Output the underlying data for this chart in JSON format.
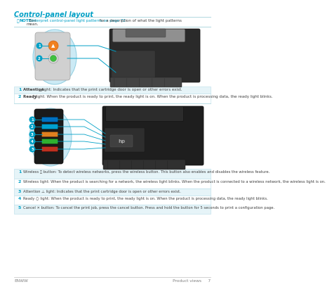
{
  "title": "Control-panel layout",
  "title_color": "#00a0c6",
  "bg_color": "#ffffff",
  "note_bold": "NOTE:",
  "note_pre": "  See ",
  "note_link": "Interpret control-panel light patterns on page 72",
  "note_post": " for a description of what the light patterns\nmean.",
  "note_color": "#00a0c6",
  "note_text_color": "#404040",
  "section1_rows": [
    {
      "num": "1",
      "bold": "Attention ",
      "sym": "⚠",
      "rest": " light: Indicates that the print cartridge door is open or other errors exist."
    },
    {
      "num": "2",
      "bold": "Ready ",
      "sym": "○",
      "rest": " light: When the product is ready to print, the ready light is on. When the product is processing data, the ready light blinks."
    }
  ],
  "section2_rows": [
    {
      "num": "1",
      "bold": "Wireless ",
      "sym": "➿",
      "rest": " button: To detect wireless networks, press the wireless button. This button also enables and disables the wireless feature."
    },
    {
      "num": "2",
      "bold": "Wireless light:",
      "sym": "",
      "rest": " When the product is searching for a network, the wireless light blinks. When the product is connected to a wireless network, the wireless light is on."
    },
    {
      "num": "3",
      "bold": "Attention ",
      "sym": "⚠",
      "rest": " light: Indicates that the print cartridge door is open or other errors exist."
    },
    {
      "num": "4",
      "bold": "Ready ",
      "sym": "○",
      "rest": " light: When the product is ready to print, the ready light is on. When the product is processing data, the ready light blinks."
    },
    {
      "num": "5",
      "bold": "Cancel ",
      "sym": "✕",
      "rest": " button: To cancel the print job, press the cancel button. Press and hold the button for 5 seconds to print a configuration page."
    }
  ],
  "row_colors": [
    "#e6f4f8",
    "#ffffff"
  ],
  "row_border": "#b8dde8",
  "num_color": "#00a0c6",
  "text_color": "#404040",
  "bubble_fill": "#00a0c6",
  "bubble_text": "#ffffff",
  "footer_left": "ENWW",
  "footer_right": "Product views     7",
  "footer_color": "#808080",
  "line_color": "#b0d8e0"
}
